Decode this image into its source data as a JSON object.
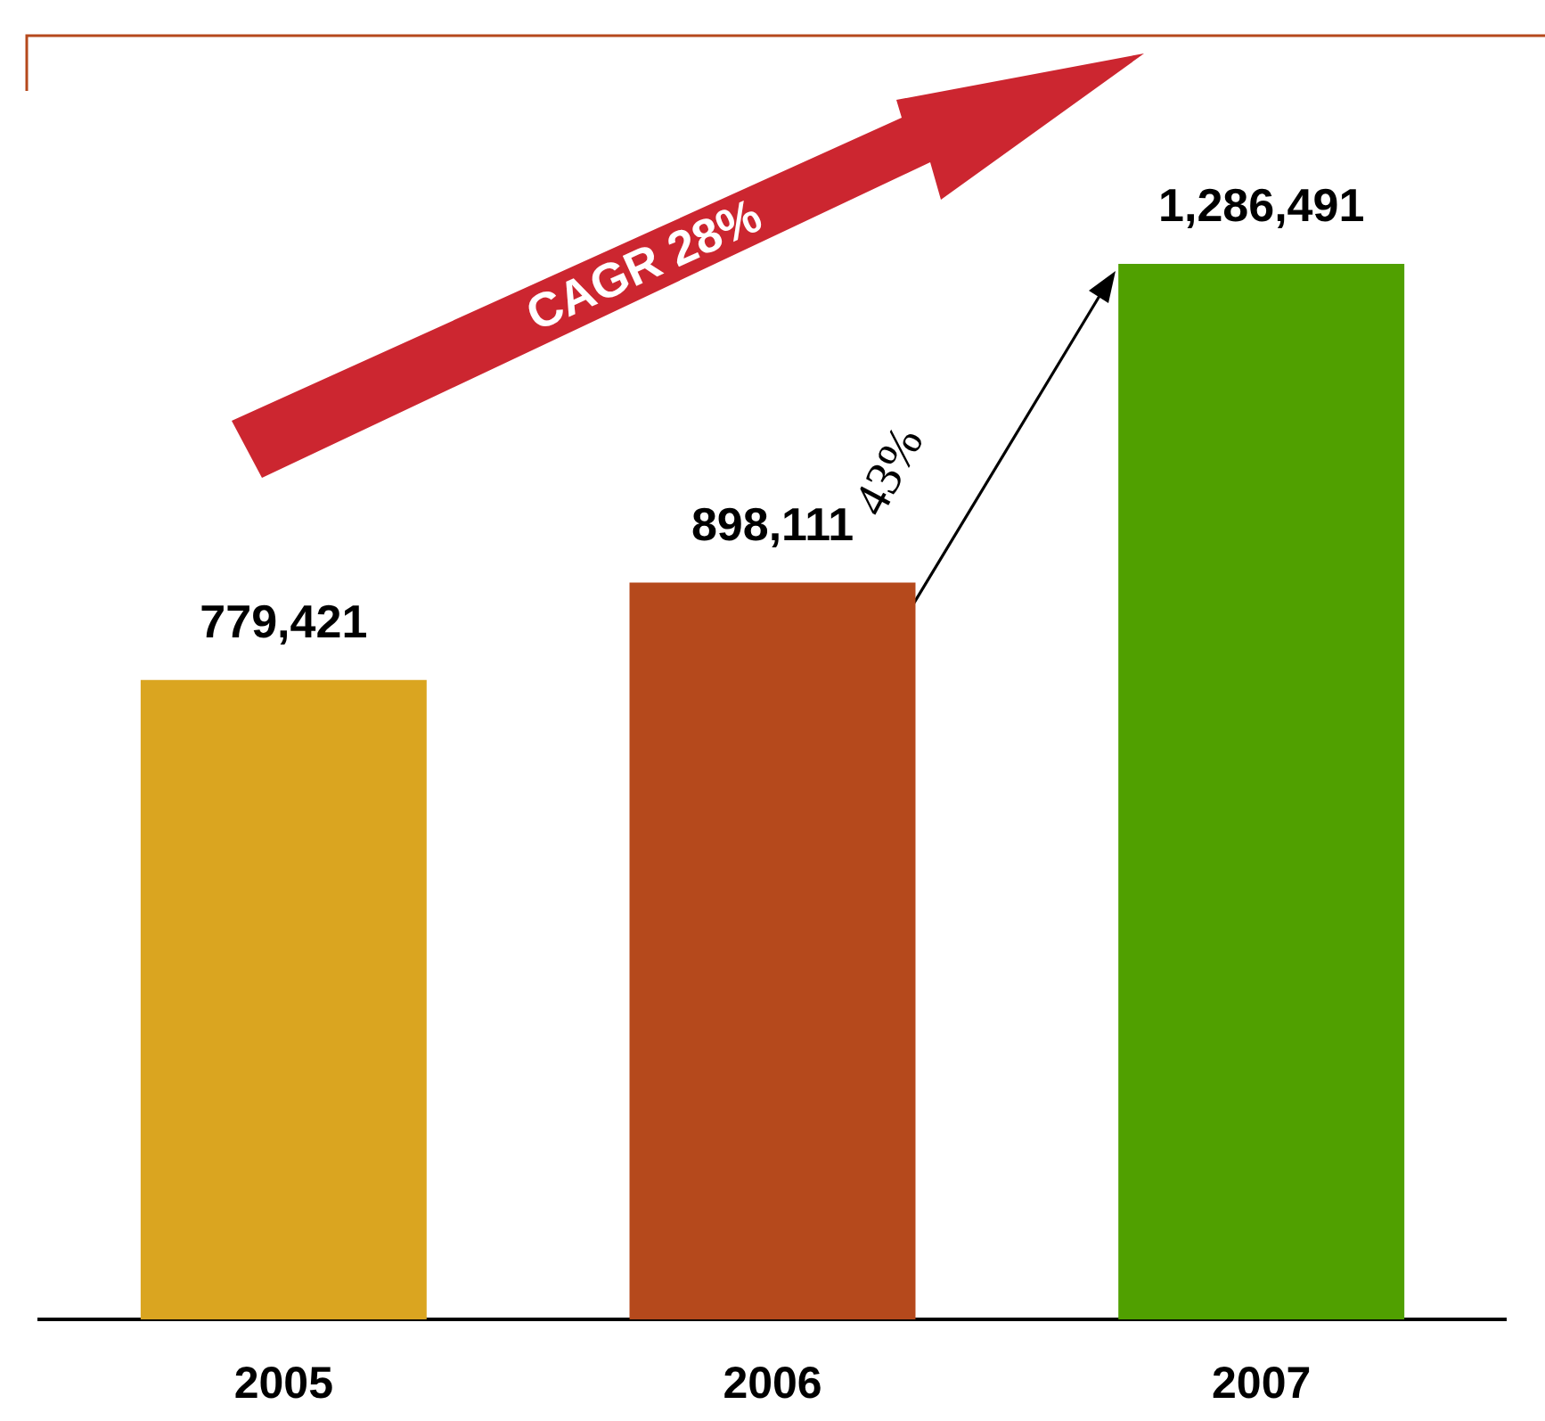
{
  "chart_data": {
    "type": "bar",
    "categories": [
      "2005",
      "2006",
      "2007"
    ],
    "values": [
      779421,
      898111,
      1286491
    ],
    "colors": [
      "#daa520",
      "#b5491c",
      "#50a000"
    ],
    "value_labels": [
      "779,421",
      "898,111",
      "1,286,491"
    ],
    "tick_labels": "x",
    "grid": false,
    "legend": false,
    "annotations": [
      "CAGR 28%",
      "43%"
    ]
  }
}
